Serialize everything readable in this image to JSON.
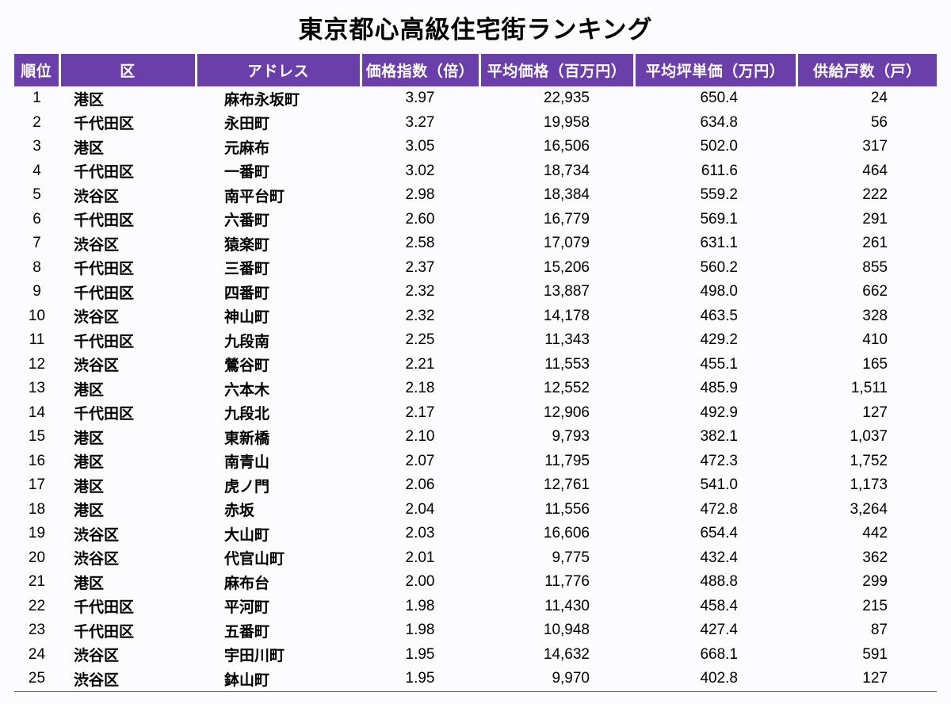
{
  "title": "東京都心高級住宅街ランキング",
  "colors": {
    "header_bg": "#6B3FAA",
    "header_text": "#FFFFFF",
    "body_bg": "#FFFFFF",
    "bottom_rule": "#555555"
  },
  "chart_data": {
    "type": "table",
    "title": "東京都心高級住宅街ランキング",
    "columns": [
      {
        "key": "rank",
        "label": "順位"
      },
      {
        "key": "ward",
        "label": "区"
      },
      {
        "key": "address",
        "label": "アドレス"
      },
      {
        "key": "price_index",
        "label": "価格指数（倍）"
      },
      {
        "key": "avg_price",
        "label": "平均価格（百万円）"
      },
      {
        "key": "tsubo_price",
        "label": "平均坪単価（万円）"
      },
      {
        "key": "units",
        "label": "供給戸数（戸）"
      }
    ],
    "rows": [
      [
        "1",
        "港区",
        "麻布永坂町",
        "3.97",
        "22,935",
        "650.4",
        "24"
      ],
      [
        "2",
        "千代田区",
        "永田町",
        "3.27",
        "19,958",
        "634.8",
        "56"
      ],
      [
        "3",
        "港区",
        "元麻布",
        "3.05",
        "16,506",
        "502.0",
        "317"
      ],
      [
        "4",
        "千代田区",
        "一番町",
        "3.02",
        "18,734",
        "611.6",
        "464"
      ],
      [
        "5",
        "渋谷区",
        "南平台町",
        "2.98",
        "18,384",
        "559.2",
        "222"
      ],
      [
        "6",
        "千代田区",
        "六番町",
        "2.60",
        "16,779",
        "569.1",
        "291"
      ],
      [
        "7",
        "渋谷区",
        "猿楽町",
        "2.58",
        "17,079",
        "631.1",
        "261"
      ],
      [
        "8",
        "千代田区",
        "三番町",
        "2.37",
        "15,206",
        "560.2",
        "855"
      ],
      [
        "9",
        "千代田区",
        "四番町",
        "2.32",
        "13,887",
        "498.0",
        "662"
      ],
      [
        "10",
        "渋谷区",
        "神山町",
        "2.32",
        "14,178",
        "463.5",
        "328"
      ],
      [
        "11",
        "千代田区",
        "九段南",
        "2.25",
        "11,343",
        "429.2",
        "410"
      ],
      [
        "12",
        "渋谷区",
        "鶯谷町",
        "2.21",
        "11,553",
        "455.1",
        "165"
      ],
      [
        "13",
        "港区",
        "六本木",
        "2.18",
        "12,552",
        "485.9",
        "1,511"
      ],
      [
        "14",
        "千代田区",
        "九段北",
        "2.17",
        "12,906",
        "492.9",
        "127"
      ],
      [
        "15",
        "港区",
        "東新橋",
        "2.10",
        "9,793",
        "382.1",
        "1,037"
      ],
      [
        "16",
        "港区",
        "南青山",
        "2.07",
        "11,795",
        "472.3",
        "1,752"
      ],
      [
        "17",
        "港区",
        "虎ノ門",
        "2.06",
        "12,761",
        "541.0",
        "1,173"
      ],
      [
        "18",
        "港区",
        "赤坂",
        "2.04",
        "11,556",
        "472.8",
        "3,264"
      ],
      [
        "19",
        "渋谷区",
        "大山町",
        "2.03",
        "16,606",
        "654.4",
        "442"
      ],
      [
        "20",
        "渋谷区",
        "代官山町",
        "2.01",
        "9,775",
        "432.4",
        "362"
      ],
      [
        "21",
        "港区",
        "麻布台",
        "2.00",
        "11,776",
        "488.8",
        "299"
      ],
      [
        "22",
        "千代田区",
        "平河町",
        "1.98",
        "11,430",
        "458.4",
        "215"
      ],
      [
        "23",
        "千代田区",
        "五番町",
        "1.98",
        "10,948",
        "427.4",
        "87"
      ],
      [
        "24",
        "渋谷区",
        "宇田川町",
        "1.95",
        "14,632",
        "668.1",
        "591"
      ],
      [
        "25",
        "渋谷区",
        "鉢山町",
        "1.95",
        "9,970",
        "402.8",
        "127"
      ]
    ]
  }
}
